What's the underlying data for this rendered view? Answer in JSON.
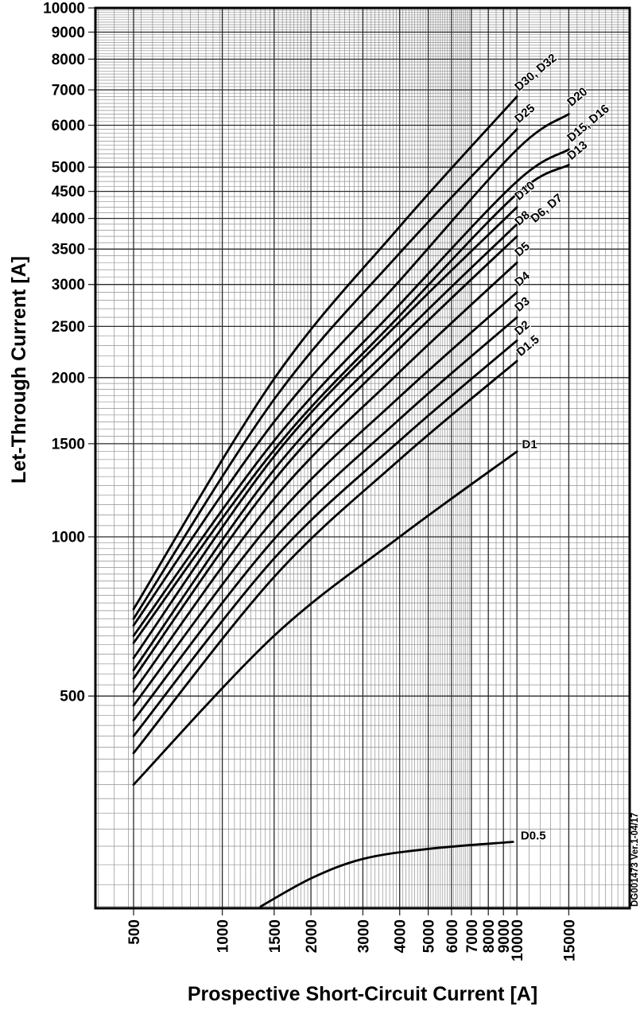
{
  "meta": {
    "doc_ref": "DG001473  Ver.1-04/17"
  },
  "chart_data": {
    "type": "line",
    "xlabel": "Prospective Short-Circuit Current [A]",
    "ylabel": "Let-Through Current [A]",
    "x_scale": "log",
    "y_scale": "log",
    "x_domain": [
      371,
      24000
    ],
    "y_domain": [
      200,
      10000
    ],
    "grid": "log-log minor and major gridlines, gray",
    "legend_position": "labels on curve ends",
    "x_ticks": [
      500,
      1000,
      1500,
      2000,
      3000,
      4000,
      5000,
      6000,
      7000,
      8000,
      9000,
      10000,
      15000
    ],
    "y_ticks": [
      500,
      1000,
      1500,
      2000,
      2500,
      3000,
      3500,
      4000,
      4500,
      5000,
      6000,
      7000,
      8000,
      9000,
      10000
    ],
    "series": [
      {
        "name": "D30, D32",
        "points": [
          [
            500,
            730
          ],
          [
            1500,
            1990
          ],
          [
            4000,
            3860
          ],
          [
            10000,
            6800
          ]
        ],
        "label": {
          "x": 10150,
          "y": 6950,
          "rot": -40
        }
      },
      {
        "name": "D25",
        "points": [
          [
            500,
            700
          ],
          [
            1500,
            1820
          ],
          [
            4000,
            3440
          ],
          [
            10000,
            5900
          ]
        ],
        "label": {
          "x": 10150,
          "y": 6050,
          "rot": -40
        }
      },
      {
        "name": "D20",
        "points": [
          [
            500,
            680
          ],
          [
            1500,
            1650
          ],
          [
            4000,
            3050
          ],
          [
            10000,
            5400
          ],
          [
            15000,
            6300
          ]
        ],
        "label": {
          "x": 15300,
          "y": 6500,
          "rot": -40
        }
      },
      {
        "name": "D15, D16",
        "points": [
          [
            500,
            650
          ],
          [
            1500,
            1520
          ],
          [
            4000,
            2750
          ],
          [
            10000,
            4700
          ],
          [
            15000,
            5400
          ]
        ],
        "label": {
          "x": 15300,
          "y": 5570,
          "rot": -40
        }
      },
      {
        "name": "D13",
        "points": [
          [
            500,
            630
          ],
          [
            1500,
            1460
          ],
          [
            4000,
            2620
          ],
          [
            10000,
            4450
          ],
          [
            15000,
            5050
          ]
        ],
        "label": {
          "x": 15300,
          "y": 5150,
          "rot": -40
        }
      },
      {
        "name": "D10",
        "points": [
          [
            500,
            590
          ],
          [
            1500,
            1420
          ],
          [
            4000,
            2550
          ],
          [
            10000,
            4200
          ]
        ],
        "label": {
          "x": 10150,
          "y": 4320,
          "rot": -40
        }
      },
      {
        "name": "D8",
        "points": [
          [
            500,
            560
          ],
          [
            1500,
            1340
          ],
          [
            4000,
            2380
          ],
          [
            10000,
            3900
          ]
        ],
        "label": {
          "x": 10150,
          "y": 3870,
          "rot": -40
        }
      },
      {
        "name": "D6, D7",
        "points": [
          [
            500,
            540
          ],
          [
            1500,
            1280
          ],
          [
            4000,
            2270
          ],
          [
            10000,
            3700
          ]
        ],
        "label": {
          "x": 11500,
          "y": 3920,
          "rot": -40
        }
      },
      {
        "name": "D5",
        "points": [
          [
            500,
            510
          ],
          [
            1500,
            1180
          ],
          [
            4000,
            2050
          ],
          [
            10000,
            3300
          ]
        ],
        "label": {
          "x": 10150,
          "y": 3380,
          "rot": -40
        }
      },
      {
        "name": "D4",
        "points": [
          [
            500,
            480
          ],
          [
            1500,
            1080
          ],
          [
            4000,
            1840
          ],
          [
            10000,
            2900
          ]
        ],
        "label": {
          "x": 10150,
          "y": 2970,
          "rot": -40
        }
      },
      {
        "name": "D3",
        "points": [
          [
            500,
            450
          ],
          [
            1500,
            990
          ],
          [
            4000,
            1670
          ],
          [
            10000,
            2600
          ]
        ],
        "label": {
          "x": 10150,
          "y": 2660,
          "rot": -40
        }
      },
      {
        "name": "D2",
        "points": [
          [
            500,
            420
          ],
          [
            1500,
            910
          ],
          [
            4000,
            1520
          ],
          [
            10000,
            2350
          ]
        ],
        "label": {
          "x": 10150,
          "y": 2400,
          "rot": -40
        }
      },
      {
        "name": "D1.5",
        "points": [
          [
            500,
            390
          ],
          [
            1500,
            840
          ],
          [
            4000,
            1400
          ],
          [
            10000,
            2150
          ]
        ],
        "label": {
          "x": 10300,
          "y": 2190,
          "rot": -40
        }
      },
      {
        "name": "D1",
        "points": [
          [
            500,
            340
          ],
          [
            1500,
            650
          ],
          [
            4000,
            1000
          ],
          [
            10000,
            1450
          ]
        ],
        "label": {
          "x": 10400,
          "y": 1470,
          "rot": 0
        }
      },
      {
        "name": "D0.5",
        "points": [
          [
            1350,
            200
          ],
          [
            2000,
            226
          ],
          [
            3000,
            246
          ],
          [
            5000,
            257
          ],
          [
            9700,
            265
          ]
        ],
        "label": {
          "x": 10300,
          "y": 268,
          "rot": 0
        }
      }
    ]
  }
}
